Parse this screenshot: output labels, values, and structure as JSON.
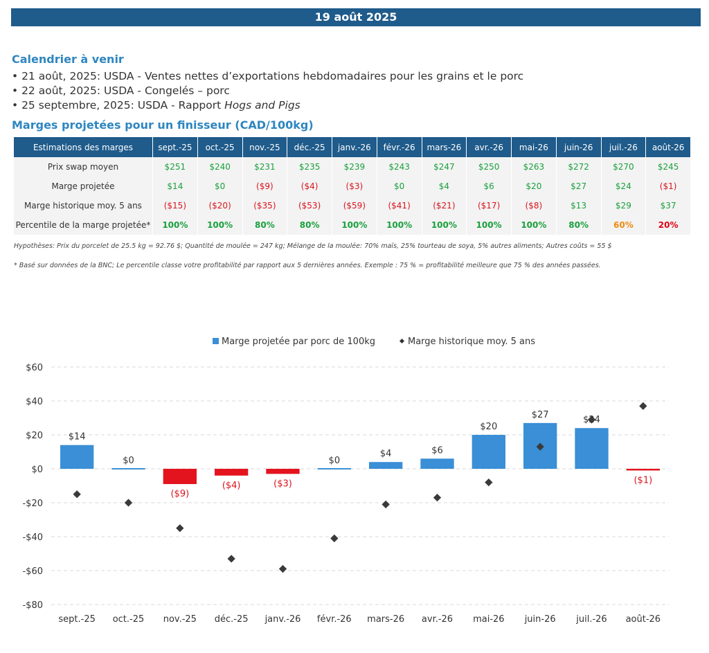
{
  "banner": {
    "date": "19 août 2025"
  },
  "calendar": {
    "title": "Calendrier à venir",
    "items": [
      {
        "text": "• 21 août, 2025: USDA - Ventes nettes d’exportations hebdomadaires pour les grains et le porc",
        "italic": ""
      },
      {
        "text": "• 22 août, 2025: USDA - Congelés – porc",
        "italic": ""
      },
      {
        "text": "• 25 septembre, 2025: USDA - Rapport ",
        "italic": "Hogs and Pigs"
      }
    ]
  },
  "margins_section": {
    "title": "Marges projetées pour un finisseur (CAD/100kg)"
  },
  "table": {
    "header_label": "Estimations des marges",
    "months": [
      "sept.-25",
      "oct.-25",
      "nov.-25",
      "déc.-25",
      "janv.-26",
      "févr.-26",
      "mars-26",
      "avr.-26",
      "mai-26",
      "juin-26",
      "juil.-26",
      "août-26"
    ],
    "rows": [
      {
        "label": "Prix swap moyen",
        "values": [
          "$251",
          "$240",
          "$231",
          "$235",
          "$239",
          "$243",
          "$247",
          "$250",
          "$263",
          "$272",
          "$270",
          "$245"
        ],
        "colors": [
          "pos",
          "pos",
          "pos",
          "pos",
          "pos",
          "pos",
          "pos",
          "pos",
          "pos",
          "pos",
          "pos",
          "pos"
        ],
        "bold": false
      },
      {
        "label": "Marge projetée",
        "values": [
          "$14",
          "$0",
          "($9)",
          "($4)",
          "($3)",
          "$0",
          "$4",
          "$6",
          "$20",
          "$27",
          "$24",
          "($1)"
        ],
        "colors": [
          "pos",
          "pos",
          "neg",
          "neg",
          "neg",
          "pos",
          "pos",
          "pos",
          "pos",
          "pos",
          "pos",
          "neg"
        ],
        "bold": false
      },
      {
        "label": "Marge historique moy. 5 ans",
        "values": [
          "($15)",
          "($20)",
          "($35)",
          "($53)",
          "($59)",
          "($41)",
          "($21)",
          "($17)",
          "($8)",
          "$13",
          "$29",
          "$37"
        ],
        "colors": [
          "neg",
          "neg",
          "neg",
          "neg",
          "neg",
          "neg",
          "neg",
          "neg",
          "neg",
          "pos",
          "pos",
          "pos"
        ],
        "bold": false
      },
      {
        "label": "Percentile de la marge projetée*",
        "values": [
          "100%",
          "100%",
          "80%",
          "80%",
          "100%",
          "100%",
          "100%",
          "100%",
          "100%",
          "80%",
          "60%",
          "20%"
        ],
        "colors": [
          "pos",
          "pos",
          "pos",
          "pos",
          "pos",
          "pos",
          "pos",
          "pos",
          "pos",
          "pos",
          "orange",
          "red-strong"
        ],
        "bold": true
      }
    ]
  },
  "notes": {
    "hypotheses": "Hypothèses: Prix du porcelet de 25.5 kg = 92.76 $; Quantité de moulée = 247 kg; Mélange de la moulée: 70% maïs, 25% tourteau de soya, 5% autres aliments; Autres coûts = 55 $",
    "percentile": "* Basé sur données de la BNC; Le percentile classe votre profitabilité par rapport aux 5 dernières années. Exemple : 75 % = profitabilité meilleure que 75 % des années passées."
  },
  "chart_data": {
    "type": "bar",
    "categories": [
      "sept.-25",
      "oct.-25",
      "nov.-25",
      "déc.-25",
      "janv.-26",
      "févr.-26",
      "mars-26",
      "avr.-26",
      "mai-26",
      "juin-26",
      "juil.-26",
      "août-26"
    ],
    "series": [
      {
        "name": "Marge projetée par porc de 100kg",
        "type": "bar",
        "values": [
          14,
          0,
          -9,
          -4,
          -3,
          0,
          4,
          6,
          20,
          27,
          24,
          -1
        ],
        "labels": [
          "$14",
          "$0",
          "($9)",
          "($4)",
          "($3)",
          "$0",
          "$4",
          "$6",
          "$20",
          "$27",
          "$24",
          "($1)"
        ]
      },
      {
        "name": "Marge historique moy. 5 ans",
        "type": "scatter",
        "values": [
          -15,
          -20,
          -35,
          -53,
          -59,
          -41,
          -21,
          -17,
          -8,
          13,
          29,
          37
        ]
      }
    ],
    "ylim": [
      -80,
      60
    ],
    "yticks": [
      60,
      40,
      20,
      0,
      -20,
      -40,
      -60,
      -80
    ],
    "ytick_labels": [
      "$60",
      "$40",
      "$20",
      "$0",
      "-$20",
      "-$40",
      "-$60",
      "-$80"
    ],
    "grid": true,
    "legend": "top",
    "colors": {
      "positive": "#3a8fd6",
      "negative": "#e3141e",
      "marker": "#3a3a3a",
      "label_negative": "#d9141c",
      "label_positive": "#333333"
    }
  }
}
